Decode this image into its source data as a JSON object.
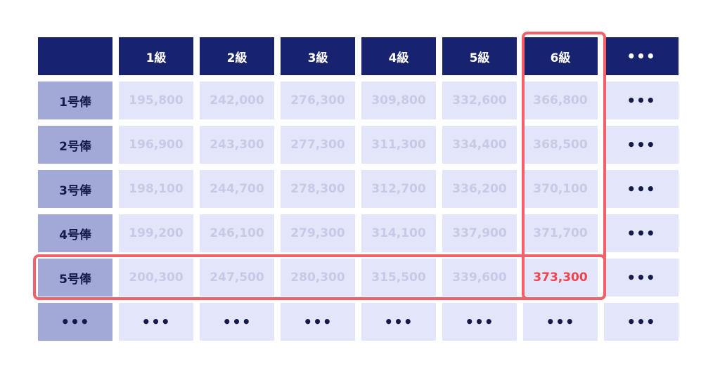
{
  "table": {
    "corner": "",
    "columns": [
      "1級",
      "2級",
      "3級",
      "4級",
      "5級",
      "6級",
      "•••"
    ],
    "rows": [
      {
        "label": "1号俸",
        "values": [
          "195,800",
          "242,000",
          "276,300",
          "309,800",
          "332,600",
          "366,800",
          "•••"
        ]
      },
      {
        "label": "2号俸",
        "values": [
          "196,900",
          "243,300",
          "277,300",
          "311,300",
          "334,400",
          "368,500",
          "•••"
        ]
      },
      {
        "label": "3号俸",
        "values": [
          "198,100",
          "244,700",
          "278,300",
          "312,700",
          "336,200",
          "370,100",
          "•••"
        ]
      },
      {
        "label": "4号俸",
        "values": [
          "199,200",
          "246,100",
          "279,300",
          "314,100",
          "337,900",
          "371,700",
          "•••"
        ]
      },
      {
        "label": "5号俸",
        "values": [
          "200,300",
          "247,500",
          "280,300",
          "315,500",
          "339,600",
          "373,300",
          "•••"
        ]
      },
      {
        "label": "•••",
        "values": [
          "•••",
          "•••",
          "•••",
          "•••",
          "•••",
          "•••",
          "•••"
        ]
      }
    ],
    "highlight": {
      "column": "6級",
      "row": "5号俸",
      "value": "373,300"
    },
    "colors": {
      "header": "#17236f",
      "row_header": "#a3a9d6",
      "cell": "#e3e6fa",
      "faded_text": "#c5cbe6",
      "highlight": "#f0424f"
    }
  }
}
